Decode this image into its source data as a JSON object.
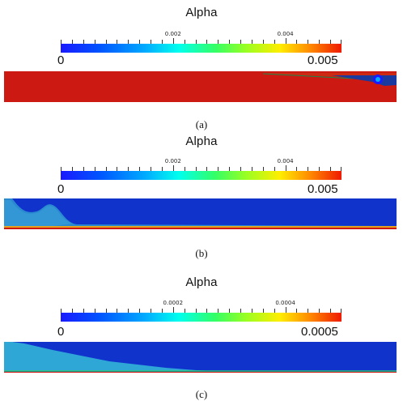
{
  "panels": [
    {
      "title": "Alpha",
      "tick_labels": [
        "0.002",
        "0.004"
      ],
      "tick_values": [
        0.002,
        0.004
      ],
      "min_label": "0",
      "max_label": "0.005",
      "range": [
        0,
        0.005
      ],
      "caption": "(a)"
    },
    {
      "title": "Alpha",
      "tick_labels": [
        "0.002",
        "0.004"
      ],
      "tick_values": [
        0.002,
        0.004
      ],
      "min_label": "0",
      "max_label": "0.005",
      "range": [
        0,
        0.005
      ],
      "caption": "(b)"
    },
    {
      "title": "Alpha",
      "tick_labels": [
        "0.0002",
        "0.0004"
      ],
      "tick_values": [
        0.0002,
        0.0004
      ],
      "min_label": "0",
      "max_label": "0.0005",
      "range": [
        0,
        0.0005
      ],
      "caption": "(c)"
    }
  ],
  "colormap": [
    "#1a1aff",
    "#00aaff",
    "#00ffee",
    "#99ff22",
    "#ffee00",
    "#ff8800",
    "#ee1a00"
  ]
}
